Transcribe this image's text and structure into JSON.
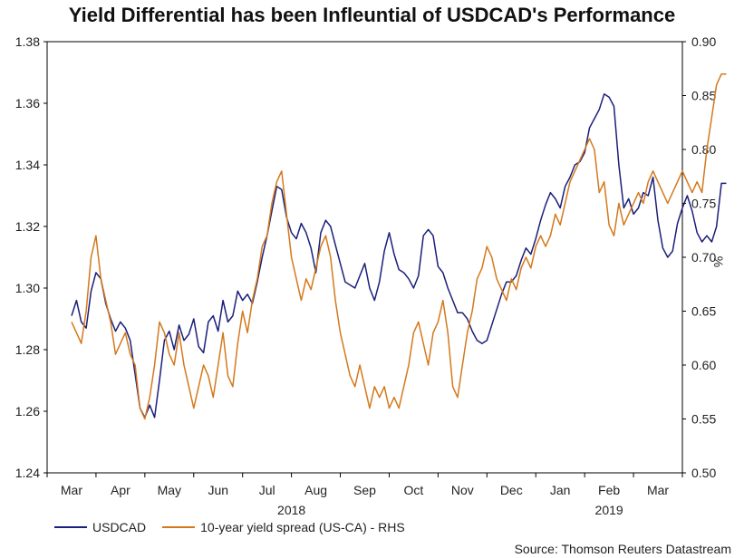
{
  "chart_data": {
    "type": "line",
    "title": "Yield Differential has been Infleuntial of USDCAD's Performance",
    "source": "Source: Thomson Reuters Datastream",
    "y_left": {
      "ticks": [
        "1.38",
        "1.36",
        "1.34",
        "1.32",
        "1.30",
        "1.28",
        "1.26",
        "1.24"
      ],
      "ylim": [
        1.24,
        1.38
      ]
    },
    "y_right": {
      "ticks": [
        "0.90",
        "0.85",
        "0.80",
        "0.75",
        "0.70",
        "0.65",
        "0.60",
        "0.55",
        "0.50"
      ],
      "ylim": [
        0.5,
        0.9
      ],
      "label": "%"
    },
    "x_months": [
      "Mar",
      "Apr",
      "May",
      "Jun",
      "Jul",
      "Aug",
      "Sep",
      "Oct",
      "Nov",
      "Dec",
      "Jan",
      "Feb",
      "Mar"
    ],
    "x_years": [
      "2018",
      "2019"
    ],
    "series": [
      {
        "name": "USDCAD",
        "axis": "left",
        "color": "#1a1f7a",
        "points": [
          [
            0,
            1.291
          ],
          [
            0.1,
            1.296
          ],
          [
            0.2,
            1.289
          ],
          [
            0.3,
            1.287
          ],
          [
            0.4,
            1.299
          ],
          [
            0.5,
            1.305
          ],
          [
            0.6,
            1.303
          ],
          [
            0.7,
            1.295
          ],
          [
            0.8,
            1.29
          ],
          [
            0.9,
            1.286
          ],
          [
            1.0,
            1.289
          ],
          [
            1.1,
            1.287
          ],
          [
            1.2,
            1.283
          ],
          [
            1.3,
            1.272
          ],
          [
            1.4,
            1.261
          ],
          [
            1.5,
            1.258
          ],
          [
            1.6,
            1.262
          ],
          [
            1.7,
            1.258
          ],
          [
            1.8,
            1.27
          ],
          [
            1.9,
            1.283
          ],
          [
            2.0,
            1.286
          ],
          [
            2.1,
            1.28
          ],
          [
            2.2,
            1.288
          ],
          [
            2.3,
            1.283
          ],
          [
            2.4,
            1.285
          ],
          [
            2.5,
            1.29
          ],
          [
            2.6,
            1.281
          ],
          [
            2.7,
            1.279
          ],
          [
            2.8,
            1.289
          ],
          [
            2.9,
            1.291
          ],
          [
            3.0,
            1.286
          ],
          [
            3.1,
            1.296
          ],
          [
            3.2,
            1.289
          ],
          [
            3.3,
            1.291
          ],
          [
            3.4,
            1.299
          ],
          [
            3.5,
            1.296
          ],
          [
            3.6,
            1.298
          ],
          [
            3.7,
            1.295
          ],
          [
            3.8,
            1.302
          ],
          [
            3.9,
            1.31
          ],
          [
            4.0,
            1.317
          ],
          [
            4.1,
            1.325
          ],
          [
            4.2,
            1.333
          ],
          [
            4.3,
            1.332
          ],
          [
            4.4,
            1.323
          ],
          [
            4.5,
            1.318
          ],
          [
            4.6,
            1.316
          ],
          [
            4.7,
            1.321
          ],
          [
            4.8,
            1.318
          ],
          [
            4.9,
            1.313
          ],
          [
            5.0,
            1.305
          ],
          [
            5.1,
            1.318
          ],
          [
            5.2,
            1.322
          ],
          [
            5.3,
            1.32
          ],
          [
            5.4,
            1.314
          ],
          [
            5.5,
            1.308
          ],
          [
            5.6,
            1.302
          ],
          [
            5.7,
            1.301
          ],
          [
            5.8,
            1.3
          ],
          [
            5.9,
            1.304
          ],
          [
            6.0,
            1.308
          ],
          [
            6.1,
            1.3
          ],
          [
            6.2,
            1.296
          ],
          [
            6.3,
            1.302
          ],
          [
            6.4,
            1.312
          ],
          [
            6.5,
            1.318
          ],
          [
            6.6,
            1.311
          ],
          [
            6.7,
            1.306
          ],
          [
            6.8,
            1.305
          ],
          [
            6.9,
            1.303
          ],
          [
            7.0,
            1.3
          ],
          [
            7.1,
            1.304
          ],
          [
            7.2,
            1.317
          ],
          [
            7.3,
            1.319
          ],
          [
            7.4,
            1.317
          ],
          [
            7.5,
            1.307
          ],
          [
            7.6,
            1.305
          ],
          [
            7.7,
            1.3
          ],
          [
            7.8,
            1.296
          ],
          [
            7.9,
            1.292
          ],
          [
            8.0,
            1.292
          ],
          [
            8.1,
            1.29
          ],
          [
            8.2,
            1.286
          ],
          [
            8.3,
            1.283
          ],
          [
            8.4,
            1.282
          ],
          [
            8.5,
            1.283
          ],
          [
            8.6,
            1.288
          ],
          [
            8.7,
            1.293
          ],
          [
            8.8,
            1.298
          ],
          [
            8.9,
            1.302
          ],
          [
            9.0,
            1.302
          ],
          [
            9.1,
            1.304
          ],
          [
            9.2,
            1.309
          ],
          [
            9.3,
            1.313
          ],
          [
            9.4,
            1.311
          ],
          [
            9.5,
            1.316
          ],
          [
            9.6,
            1.322
          ],
          [
            9.7,
            1.327
          ],
          [
            9.8,
            1.331
          ],
          [
            9.9,
            1.329
          ],
          [
            10.0,
            1.326
          ],
          [
            10.1,
            1.333
          ],
          [
            10.2,
            1.336
          ],
          [
            10.3,
            1.34
          ],
          [
            10.4,
            1.341
          ],
          [
            10.5,
            1.344
          ],
          [
            10.6,
            1.352
          ],
          [
            10.7,
            1.355
          ],
          [
            10.8,
            1.358
          ],
          [
            10.9,
            1.363
          ],
          [
            11.0,
            1.362
          ],
          [
            11.1,
            1.359
          ],
          [
            11.2,
            1.34
          ],
          [
            11.3,
            1.326
          ],
          [
            11.4,
            1.329
          ],
          [
            11.5,
            1.324
          ],
          [
            11.6,
            1.326
          ],
          [
            11.7,
            1.331
          ],
          [
            11.8,
            1.33
          ],
          [
            11.9,
            1.336
          ],
          [
            12.0,
            1.322
          ],
          [
            12.1,
            1.313
          ],
          [
            12.2,
            1.31
          ],
          [
            12.3,
            1.312
          ],
          [
            12.4,
            1.321
          ],
          [
            12.5,
            1.326
          ],
          [
            12.6,
            1.33
          ],
          [
            12.7,
            1.325
          ],
          [
            12.8,
            1.318
          ],
          [
            12.9,
            1.315
          ],
          [
            13.0,
            1.317
          ],
          [
            13.1,
            1.315
          ],
          [
            13.2,
            1.32
          ],
          [
            13.3,
            1.334
          ],
          [
            13.4,
            1.334
          ]
        ]
      },
      {
        "name": "10-year yield spread (US-CA) - RHS",
        "axis": "right",
        "color": "#d4791b",
        "points": [
          [
            0,
            0.64
          ],
          [
            0.1,
            0.63
          ],
          [
            0.2,
            0.62
          ],
          [
            0.3,
            0.65
          ],
          [
            0.4,
            0.7
          ],
          [
            0.5,
            0.72
          ],
          [
            0.6,
            0.68
          ],
          [
            0.7,
            0.66
          ],
          [
            0.8,
            0.64
          ],
          [
            0.9,
            0.61
          ],
          [
            1.0,
            0.62
          ],
          [
            1.1,
            0.63
          ],
          [
            1.2,
            0.61
          ],
          [
            1.3,
            0.6
          ],
          [
            1.4,
            0.56
          ],
          [
            1.5,
            0.55
          ],
          [
            1.6,
            0.57
          ],
          [
            1.7,
            0.6
          ],
          [
            1.8,
            0.64
          ],
          [
            1.9,
            0.63
          ],
          [
            2.0,
            0.61
          ],
          [
            2.1,
            0.6
          ],
          [
            2.2,
            0.63
          ],
          [
            2.3,
            0.6
          ],
          [
            2.4,
            0.58
          ],
          [
            2.5,
            0.56
          ],
          [
            2.6,
            0.58
          ],
          [
            2.7,
            0.6
          ],
          [
            2.8,
            0.59
          ],
          [
            2.9,
            0.57
          ],
          [
            3.0,
            0.6
          ],
          [
            3.1,
            0.63
          ],
          [
            3.2,
            0.59
          ],
          [
            3.3,
            0.58
          ],
          [
            3.4,
            0.62
          ],
          [
            3.5,
            0.65
          ],
          [
            3.6,
            0.63
          ],
          [
            3.7,
            0.66
          ],
          [
            3.8,
            0.68
          ],
          [
            3.9,
            0.71
          ],
          [
            4.0,
            0.72
          ],
          [
            4.1,
            0.75
          ],
          [
            4.2,
            0.77
          ],
          [
            4.3,
            0.78
          ],
          [
            4.4,
            0.74
          ],
          [
            4.5,
            0.7
          ],
          [
            4.6,
            0.68
          ],
          [
            4.7,
            0.66
          ],
          [
            4.8,
            0.68
          ],
          [
            4.9,
            0.67
          ],
          [
            5.0,
            0.69
          ],
          [
            5.1,
            0.71
          ],
          [
            5.2,
            0.72
          ],
          [
            5.3,
            0.7
          ],
          [
            5.4,
            0.66
          ],
          [
            5.5,
            0.63
          ],
          [
            5.6,
            0.61
          ],
          [
            5.7,
            0.59
          ],
          [
            5.8,
            0.58
          ],
          [
            5.9,
            0.6
          ],
          [
            6.0,
            0.58
          ],
          [
            6.1,
            0.56
          ],
          [
            6.2,
            0.58
          ],
          [
            6.3,
            0.57
          ],
          [
            6.4,
            0.58
          ],
          [
            6.5,
            0.56
          ],
          [
            6.6,
            0.57
          ],
          [
            6.7,
            0.56
          ],
          [
            6.8,
            0.58
          ],
          [
            6.9,
            0.6
          ],
          [
            7.0,
            0.63
          ],
          [
            7.1,
            0.64
          ],
          [
            7.2,
            0.62
          ],
          [
            7.3,
            0.6
          ],
          [
            7.4,
            0.63
          ],
          [
            7.5,
            0.64
          ],
          [
            7.6,
            0.66
          ],
          [
            7.7,
            0.63
          ],
          [
            7.8,
            0.58
          ],
          [
            7.9,
            0.57
          ],
          [
            8.0,
            0.6
          ],
          [
            8.1,
            0.63
          ],
          [
            8.2,
            0.65
          ],
          [
            8.3,
            0.68
          ],
          [
            8.4,
            0.69
          ],
          [
            8.5,
            0.71
          ],
          [
            8.6,
            0.7
          ],
          [
            8.7,
            0.68
          ],
          [
            8.8,
            0.67
          ],
          [
            8.9,
            0.66
          ],
          [
            9.0,
            0.68
          ],
          [
            9.1,
            0.67
          ],
          [
            9.2,
            0.69
          ],
          [
            9.3,
            0.7
          ],
          [
            9.4,
            0.69
          ],
          [
            9.5,
            0.71
          ],
          [
            9.6,
            0.72
          ],
          [
            9.7,
            0.71
          ],
          [
            9.8,
            0.72
          ],
          [
            9.9,
            0.74
          ],
          [
            10.0,
            0.73
          ],
          [
            10.1,
            0.75
          ],
          [
            10.2,
            0.77
          ],
          [
            10.3,
            0.78
          ],
          [
            10.4,
            0.79
          ],
          [
            10.5,
            0.8
          ],
          [
            10.6,
            0.81
          ],
          [
            10.7,
            0.8
          ],
          [
            10.8,
            0.76
          ],
          [
            10.9,
            0.77
          ],
          [
            11.0,
            0.73
          ],
          [
            11.1,
            0.72
          ],
          [
            11.2,
            0.75
          ],
          [
            11.3,
            0.73
          ],
          [
            11.4,
            0.74
          ],
          [
            11.5,
            0.75
          ],
          [
            11.6,
            0.76
          ],
          [
            11.7,
            0.75
          ],
          [
            11.8,
            0.77
          ],
          [
            11.9,
            0.78
          ],
          [
            12.0,
            0.77
          ],
          [
            12.1,
            0.76
          ],
          [
            12.2,
            0.75
          ],
          [
            12.3,
            0.76
          ],
          [
            12.4,
            0.77
          ],
          [
            12.5,
            0.78
          ],
          [
            12.6,
            0.77
          ],
          [
            12.7,
            0.76
          ],
          [
            12.8,
            0.77
          ],
          [
            12.9,
            0.76
          ],
          [
            13.0,
            0.8
          ],
          [
            13.1,
            0.83
          ],
          [
            13.2,
            0.86
          ],
          [
            13.3,
            0.87
          ],
          [
            13.4,
            0.87
          ]
        ]
      }
    ]
  }
}
